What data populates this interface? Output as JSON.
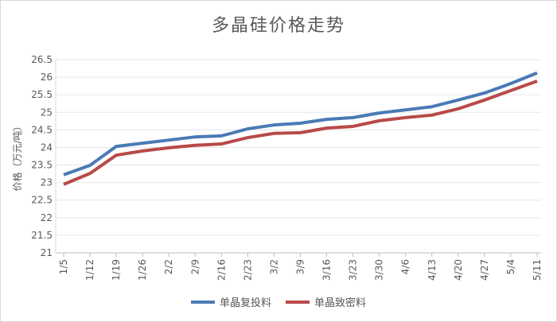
{
  "chart_data": {
    "type": "line",
    "title": "多晶硅价格走势",
    "xlabel": "",
    "ylabel": "价格（万元/吨）",
    "categories": [
      "1/5",
      "1/12",
      "1/19",
      "1/26",
      "2/2",
      "2/9",
      "2/16",
      "2/23",
      "3/2",
      "3/9",
      "3/16",
      "3/23",
      "3/30",
      "4/6",
      "4/13",
      "4/20",
      "4/27",
      "5/4",
      "5/11"
    ],
    "ylim": [
      21,
      26.5
    ],
    "yticks": [
      "21",
      "21.5",
      "22",
      "22.5",
      "23",
      "23.5",
      "24",
      "24.5",
      "25",
      "25.5",
      "26",
      "26.5"
    ],
    "grid": true,
    "legend": "bottom",
    "series": [
      {
        "name": "单晶复投料",
        "color": "#4a7ab5",
        "values": [
          23.22,
          23.49,
          24.03,
          24.12,
          24.21,
          24.3,
          24.33,
          24.53,
          24.64,
          24.69,
          24.8,
          24.85,
          24.98,
          25.07,
          25.16,
          25.35,
          25.55,
          25.82,
          26.12
        ]
      },
      {
        "name": "单晶致密料",
        "color": "#b84a48",
        "values": [
          22.95,
          23.26,
          23.78,
          23.9,
          23.99,
          24.06,
          24.1,
          24.28,
          24.4,
          24.42,
          24.55,
          24.6,
          24.76,
          24.85,
          24.92,
          25.1,
          25.35,
          25.62,
          25.89
        ]
      }
    ]
  }
}
